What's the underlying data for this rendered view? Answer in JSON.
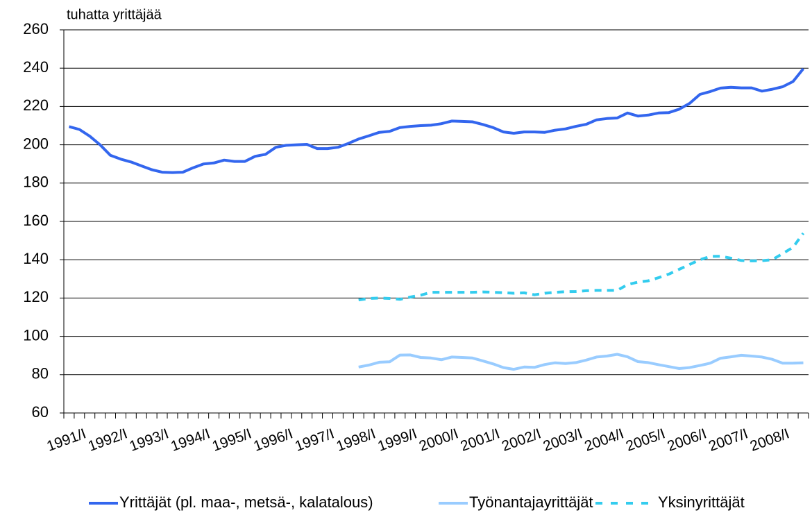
{
  "chart_data": {
    "type": "line",
    "y_label": "tuhatta yrittäjää",
    "categories": [
      "1991/I",
      null,
      null,
      null,
      "1992/I",
      null,
      null,
      null,
      "1993/I",
      null,
      null,
      null,
      "1994/I",
      null,
      null,
      null,
      "1995/I",
      null,
      null,
      null,
      "1996/I",
      null,
      null,
      null,
      "1997/I",
      null,
      null,
      null,
      "1998/I",
      null,
      null,
      null,
      "1999/I",
      null,
      null,
      null,
      "2000/I",
      null,
      null,
      null,
      "2001/I",
      null,
      null,
      null,
      "2002/I",
      null,
      null,
      null,
      "2003/I",
      null,
      null,
      null,
      "2004/I",
      null,
      null,
      null,
      "2005/I",
      null,
      null,
      null,
      "2006/I",
      null,
      null,
      null,
      "2007/I",
      null,
      null,
      null,
      "2008/I",
      null,
      null,
      null
    ],
    "series": [
      {
        "name": "Yrittäjät (pl. maa-, metsä-, kalatalous)",
        "color": "#3366ee",
        "dash": false,
        "values": [
          209.5,
          208,
          204.5,
          200,
          194.5,
          192.5,
          191,
          189,
          187,
          185.7,
          185.5,
          185.7,
          188,
          190,
          190.5,
          192,
          191.3,
          191.3,
          194,
          195,
          198.7,
          199.7,
          200,
          200.2,
          198,
          198,
          198.7,
          200.7,
          203,
          204.7,
          206.5,
          207,
          209,
          209.6,
          210,
          210.2,
          211,
          212.4,
          212.2,
          212,
          210.6,
          209,
          206.7,
          206,
          206.7,
          206.7,
          206.5,
          207.6,
          208.3,
          209.6,
          210.7,
          213,
          213.7,
          214,
          216.6,
          215,
          215.5,
          216.6,
          216.8,
          218.6,
          221.6,
          226.3,
          227.8,
          229.6,
          230,
          229.7,
          229.7,
          228,
          229,
          230.3,
          233,
          239.7
        ]
      },
      {
        "name": "Työnantajayrittäjät",
        "color": "#99ccff",
        "dash": false,
        "values": [
          null,
          null,
          null,
          null,
          null,
          null,
          null,
          null,
          null,
          null,
          null,
          null,
          null,
          null,
          null,
          null,
          null,
          null,
          null,
          null,
          null,
          null,
          null,
          null,
          null,
          null,
          null,
          null,
          84,
          85,
          86.5,
          86.7,
          90.2,
          90.3,
          89,
          88.7,
          87.8,
          89.2,
          89,
          88.7,
          87.2,
          85.6,
          83.7,
          82.8,
          84,
          83.8,
          85.3,
          86.2,
          85.8,
          86.3,
          87.6,
          89.2,
          89.7,
          90.6,
          89.3,
          86.8,
          86.3,
          85.2,
          84.2,
          83.2,
          83.7,
          84.8,
          86,
          88.6,
          89.3,
          90.1,
          89.7,
          89.2,
          88,
          86,
          86,
          86.2
        ]
      },
      {
        "name": "Yksinyrittäjät",
        "color": "#33ccee",
        "dash": true,
        "values": [
          null,
          null,
          null,
          null,
          null,
          null,
          null,
          null,
          null,
          null,
          null,
          null,
          null,
          null,
          null,
          null,
          null,
          null,
          null,
          null,
          null,
          null,
          null,
          null,
          null,
          null,
          null,
          null,
          119,
          119.8,
          120,
          119.8,
          119.3,
          120.5,
          121.5,
          123,
          123,
          123,
          123,
          123,
          123.2,
          123,
          122.8,
          122.5,
          122.7,
          121.7,
          122.5,
          123,
          123.3,
          123.4,
          123.8,
          124,
          124,
          124,
          127,
          128.3,
          129,
          130.6,
          132.5,
          135,
          137.5,
          140,
          141.7,
          141.8,
          140.8,
          139.6,
          139.4,
          139.5,
          140,
          143.2,
          146.5,
          153.8
        ]
      }
    ],
    "ylim": [
      60,
      260
    ],
    "yticks": [
      60,
      80,
      100,
      120,
      140,
      160,
      180,
      200,
      220,
      240,
      260
    ],
    "grid": true,
    "legend": "bottom"
  }
}
